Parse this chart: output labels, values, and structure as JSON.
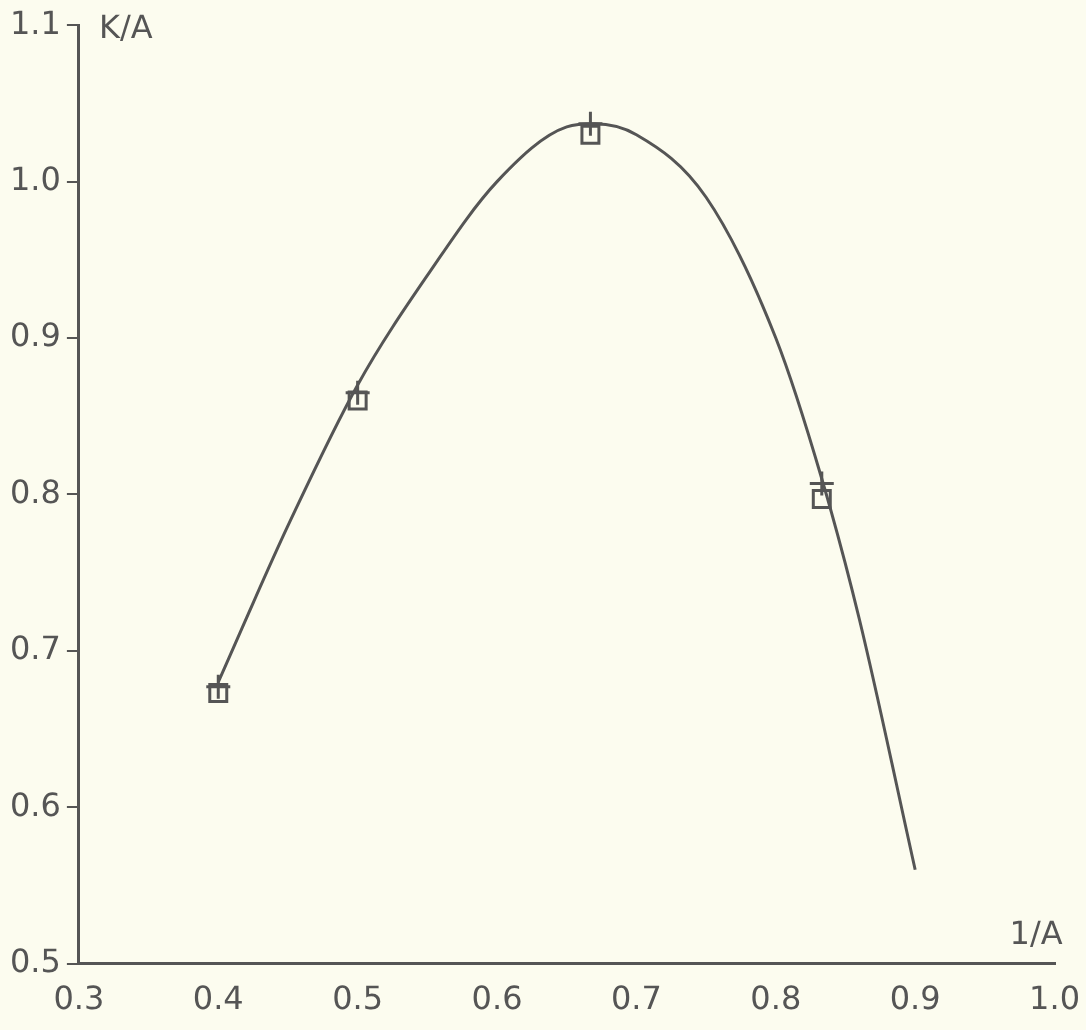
{
  "chart_data": {
    "type": "line",
    "xlabel": "1/A",
    "ylabel": "K/A",
    "xlim": [
      0.3,
      1.0
    ],
    "xticks": [
      {
        "value": 0.3,
        "label": "0.3"
      },
      {
        "value": 0.4,
        "label": "0.4"
      },
      {
        "value": 0.5,
        "label": "0.5"
      },
      {
        "value": 0.6,
        "label": "0.6"
      },
      {
        "value": 0.7,
        "label": "0.7"
      },
      {
        "value": 0.8,
        "label": "0.8"
      },
      {
        "value": 0.9,
        "label": "0.9"
      },
      {
        "value": 1.0,
        "label": "1.0"
      }
    ],
    "ylim": [
      0.5,
      1.1
    ],
    "yticks": [
      {
        "value": 0.5,
        "label": "0.5"
      },
      {
        "value": 0.6,
        "label": "0.6"
      },
      {
        "value": 0.7,
        "label": "0.7"
      },
      {
        "value": 0.8,
        "label": "0.8"
      },
      {
        "value": 0.9,
        "label": "0.9"
      },
      {
        "value": 1.0,
        "label": "1.0"
      },
      {
        "value": 1.1,
        "label": "1.1"
      }
    ],
    "grid": false,
    "legend": false,
    "series": [
      {
        "color": "#555555",
        "marker": "none",
        "x": [
          0.4,
          0.45,
          0.5,
          0.55,
          0.6,
          0.65,
          0.67,
          0.7,
          0.75,
          0.8,
          0.833,
          0.86,
          0.9
        ],
        "values": [
          0.68,
          0.78,
          0.87,
          0.94,
          1.0,
          1.035,
          1.037,
          1.03,
          0.99,
          0.9,
          0.81,
          0.72,
          0.56
        ]
      },
      {
        "type": "scatter",
        "color": "#555555",
        "marker": "square",
        "x": [
          0.4,
          0.5,
          0.667,
          0.833
        ],
        "values": [
          0.673,
          0.86,
          1.03,
          0.797
        ]
      },
      {
        "type": "scatter",
        "color": "#555555",
        "marker": "cross",
        "x": [
          0.4,
          0.5,
          0.667,
          0.833
        ],
        "values": [
          0.677,
          0.865,
          1.037,
          0.807
        ]
      }
    ]
  }
}
